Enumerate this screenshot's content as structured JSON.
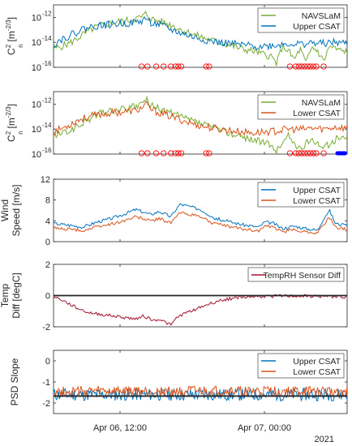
{
  "figure": {
    "year_label": "2021",
    "time_ticks": [
      "Apr 06, 12:00",
      "Apr 07, 00:00"
    ]
  },
  "colors": {
    "navslam": "#77ac30",
    "upper": "#0072bd",
    "lower": "#d95319",
    "temp": "#a2142f",
    "marker": "#ff0000",
    "blue_marker": "#0000ff",
    "axis": "#262626"
  },
  "chart_data": [
    {
      "type": "line",
      "ylabel": [
        "C",
        "n",
        "2",
        "[m",
        "-2/3",
        "]"
      ],
      "y_scale": "log",
      "ylim": [
        1e-16,
        1e-11
      ],
      "y_ticks": [
        {
          "value": 1e-12,
          "label_base": "10",
          "label_exp": "-12"
        },
        {
          "value": 1e-14,
          "label_base": "10",
          "label_exp": "-14"
        },
        {
          "value": 1e-16,
          "label_base": "10",
          "label_exp": "-16"
        }
      ],
      "legend_location": "top-right",
      "series": [
        {
          "name": "NAVSLaM",
          "color_key": "navslam",
          "points": [
            [
              0,
              3e-15
            ],
            [
              0.02,
              4e-15
            ],
            [
              0.06,
              1e-14
            ],
            [
              0.1,
              4e-14
            ],
            [
              0.14,
              1.5e-13
            ],
            [
              0.18,
              3e-13
            ],
            [
              0.22,
              4.5e-13
            ],
            [
              0.26,
              6e-13
            ],
            [
              0.28,
              8e-13
            ],
            [
              0.3,
              1e-12
            ],
            [
              0.315,
              2e-12
            ],
            [
              0.33,
              8e-13
            ],
            [
              0.36,
              5e-13
            ],
            [
              0.4,
              2.5e-13
            ],
            [
              0.44,
              9e-14
            ],
            [
              0.48,
              4e-14
            ],
            [
              0.52,
              2e-14
            ],
            [
              0.56,
              1e-14
            ],
            [
              0.6,
              6e-15
            ],
            [
              0.64,
              3e-15
            ],
            [
              0.68,
              2e-15
            ],
            [
              0.72,
              1e-15
            ],
            [
              0.74,
              8e-16
            ],
            [
              0.76,
              2e-16
            ],
            [
              0.78,
              5e-15
            ],
            [
              0.8,
              2e-15
            ],
            [
              0.82,
              4e-16
            ],
            [
              0.84,
              3e-15
            ],
            [
              0.86,
              2e-16
            ],
            [
              0.88,
              4e-15
            ],
            [
              0.9,
              2e-15
            ],
            [
              0.92,
              3e-16
            ],
            [
              0.94,
              5e-15
            ],
            [
              0.96,
              3e-15
            ],
            [
              0.98,
              2e-15
            ],
            [
              1,
              2e-15
            ]
          ]
        },
        {
          "name": "Upper CSAT",
          "color_key": "upper",
          "points": [
            [
              0,
              6e-15
            ],
            [
              0.02,
              1.5e-14
            ],
            [
              0.06,
              4e-14
            ],
            [
              0.1,
              1.2e-13
            ],
            [
              0.14,
              2e-13
            ],
            [
              0.18,
              2.5e-13
            ],
            [
              0.22,
              3e-13
            ],
            [
              0.26,
              3.5e-13
            ],
            [
              0.28,
              4e-13
            ],
            [
              0.3,
              5e-13
            ],
            [
              0.315,
              9e-13
            ],
            [
              0.33,
              4e-13
            ],
            [
              0.36,
              2.5e-13
            ],
            [
              0.4,
              1e-13
            ],
            [
              0.44,
              5e-14
            ],
            [
              0.48,
              2.5e-14
            ],
            [
              0.52,
              1.5e-14
            ],
            [
              0.56,
              1e-14
            ],
            [
              0.6,
              8e-15
            ],
            [
              0.64,
              6e-15
            ],
            [
              0.68,
              5e-15
            ],
            [
              0.72,
              5e-15
            ],
            [
              0.76,
              6e-15
            ],
            [
              0.8,
              8e-15
            ],
            [
              0.84,
              7e-15
            ],
            [
              0.88,
              9e-15
            ],
            [
              0.92,
              8e-15
            ],
            [
              0.96,
              1e-14
            ],
            [
              1,
              8e-15
            ]
          ]
        }
      ],
      "markers": {
        "style": "open-circle",
        "color_key": "marker",
        "x": [
          0.3,
          0.32,
          0.35,
          0.375,
          0.4,
          0.415,
          0.425,
          0.435,
          0.52,
          0.53,
          0.805,
          0.825,
          0.835,
          0.845,
          0.855,
          0.865,
          0.875,
          0.885,
          0.895,
          0.92
        ]
      }
    },
    {
      "type": "line",
      "ylabel": [
        "C",
        "n",
        "2",
        "[m",
        "-2/3",
        "]"
      ],
      "y_scale": "log",
      "ylim": [
        1e-16,
        1e-11
      ],
      "y_ticks": [
        {
          "value": 1e-12,
          "label_base": "10",
          "label_exp": "-12"
        },
        {
          "value": 1e-14,
          "label_base": "10",
          "label_exp": "-14"
        },
        {
          "value": 1e-16,
          "label_base": "10",
          "label_exp": "-16"
        }
      ],
      "legend_location": "right",
      "series": [
        {
          "name": "NAVSLaM",
          "color_key": "navslam",
          "points": [
            [
              0,
              3e-15
            ],
            [
              0.04,
              5e-15
            ],
            [
              0.08,
              1.5e-14
            ],
            [
              0.12,
              6e-14
            ],
            [
              0.16,
              2e-13
            ],
            [
              0.2,
              3e-13
            ],
            [
              0.24,
              4e-13
            ],
            [
              0.28,
              6e-13
            ],
            [
              0.3,
              1e-12
            ],
            [
              0.315,
              2.5e-12
            ],
            [
              0.33,
              8e-13
            ],
            [
              0.36,
              4e-13
            ],
            [
              0.4,
              2e-13
            ],
            [
              0.44,
              8e-14
            ],
            [
              0.48,
              4e-14
            ],
            [
              0.52,
              2e-14
            ],
            [
              0.56,
              1e-14
            ],
            [
              0.6,
              5e-15
            ],
            [
              0.64,
              2.5e-15
            ],
            [
              0.68,
              1.5e-15
            ],
            [
              0.72,
              8e-16
            ],
            [
              0.76,
              2e-16
            ],
            [
              0.8,
              3e-15
            ],
            [
              0.84,
              2e-16
            ],
            [
              0.88,
              2e-15
            ],
            [
              0.92,
              3e-16
            ],
            [
              0.96,
              1.5e-15
            ],
            [
              1,
              2e-15
            ]
          ]
        },
        {
          "name": "Lower CSAT",
          "color_key": "lower",
          "points": [
            [
              0,
              6e-15
            ],
            [
              0.04,
              1.5e-14
            ],
            [
              0.08,
              5e-14
            ],
            [
              0.12,
              1e-13
            ],
            [
              0.16,
              1.5e-13
            ],
            [
              0.2,
              2e-13
            ],
            [
              0.24,
              2.5e-13
            ],
            [
              0.28,
              3e-13
            ],
            [
              0.3,
              5e-13
            ],
            [
              0.315,
              1e-12
            ],
            [
              0.33,
              4e-13
            ],
            [
              0.36,
              2e-13
            ],
            [
              0.4,
              1e-13
            ],
            [
              0.44,
              5e-14
            ],
            [
              0.48,
              2.5e-14
            ],
            [
              0.52,
              1.5e-14
            ],
            [
              0.56,
              1e-14
            ],
            [
              0.6,
              8e-15
            ],
            [
              0.64,
              6e-15
            ],
            [
              0.68,
              5e-15
            ],
            [
              0.72,
              6e-15
            ],
            [
              0.76,
              7e-15
            ],
            [
              0.8,
              1e-14
            ],
            [
              0.84,
              9e-15
            ],
            [
              0.88,
              1.2e-14
            ],
            [
              0.92,
              1e-14
            ],
            [
              0.96,
              1.5e-14
            ],
            [
              1,
              1.2e-14
            ]
          ]
        }
      ],
      "markers": {
        "style": "open-circle",
        "color_key": "marker",
        "x": [
          0.3,
          0.32,
          0.35,
          0.375,
          0.4,
          0.415,
          0.425,
          0.435,
          0.52,
          0.53,
          0.805,
          0.825,
          0.835,
          0.845,
          0.855,
          0.865,
          0.875,
          0.885,
          0.895,
          0.92
        ]
      },
      "blue_markers": {
        "style": "filled",
        "color_key": "blue_marker",
        "x_range": [
          0.96,
          1.0
        ]
      }
    },
    {
      "type": "line",
      "ylabel": [
        "Wind",
        "Speed [m/s]"
      ],
      "ylim": [
        0,
        12
      ],
      "y_ticks": [
        {
          "value": 0,
          "label": "0"
        },
        {
          "value": 4,
          "label": "4"
        },
        {
          "value": 8,
          "label": "8"
        },
        {
          "value": 12,
          "label": "12"
        }
      ],
      "legend_location": "right",
      "series": [
        {
          "name": "Upper CSAT",
          "color_key": "upper",
          "points": [
            [
              0,
              3.5
            ],
            [
              0.05,
              3.2
            ],
            [
              0.1,
              2.8
            ],
            [
              0.15,
              3.8
            ],
            [
              0.2,
              4.5
            ],
            [
              0.25,
              5.5
            ],
            [
              0.28,
              6.2
            ],
            [
              0.3,
              5.8
            ],
            [
              0.33,
              5.2
            ],
            [
              0.36,
              5.8
            ],
            [
              0.4,
              4.8
            ],
            [
              0.43,
              7.2
            ],
            [
              0.46,
              6.8
            ],
            [
              0.5,
              6.2
            ],
            [
              0.55,
              4.5
            ],
            [
              0.6,
              3.8
            ],
            [
              0.65,
              3.2
            ],
            [
              0.7,
              2.8
            ],
            [
              0.72,
              3.8
            ],
            [
              0.75,
              3.5
            ],
            [
              0.78,
              2.5
            ],
            [
              0.82,
              3
            ],
            [
              0.86,
              2.5
            ],
            [
              0.9,
              2.2
            ],
            [
              0.92,
              4.5
            ],
            [
              0.94,
              6
            ],
            [
              0.96,
              3.5
            ],
            [
              1,
              3
            ]
          ]
        },
        {
          "name": "Lower CSAT",
          "color_key": "lower",
          "points": [
            [
              0,
              2.6
            ],
            [
              0.05,
              2.4
            ],
            [
              0.1,
              2.1
            ],
            [
              0.15,
              2.9
            ],
            [
              0.2,
              3.4
            ],
            [
              0.25,
              4.2
            ],
            [
              0.28,
              4.8
            ],
            [
              0.3,
              4.5
            ],
            [
              0.33,
              4
            ],
            [
              0.36,
              4.4
            ],
            [
              0.4,
              3.6
            ],
            [
              0.43,
              5.6
            ],
            [
              0.46,
              5.3
            ],
            [
              0.5,
              4.8
            ],
            [
              0.55,
              3.4
            ],
            [
              0.6,
              2.9
            ],
            [
              0.65,
              2.4
            ],
            [
              0.7,
              2.1
            ],
            [
              0.72,
              3
            ],
            [
              0.75,
              2.7
            ],
            [
              0.78,
              1.9
            ],
            [
              0.82,
              2.3
            ],
            [
              0.86,
              1.9
            ],
            [
              0.9,
              1.7
            ],
            [
              0.92,
              3.4
            ],
            [
              0.94,
              4.6
            ],
            [
              0.96,
              2.7
            ],
            [
              1,
              2.3
            ]
          ]
        }
      ]
    },
    {
      "type": "line",
      "ylabel": [
        "Temp",
        "Diff [degC]"
      ],
      "ylim": [
        -2,
        2
      ],
      "y_ticks": [
        {
          "value": -2,
          "label": "-2"
        },
        {
          "value": 0,
          "label": "0"
        },
        {
          "value": 2,
          "label": "2"
        }
      ],
      "legend_location": "top-right",
      "reference_line": {
        "y": 0,
        "color_key": "axis"
      },
      "series": [
        {
          "name": "TempRH Sensor Diff",
          "color_key": "temp",
          "points": [
            [
              0,
              -0.1
            ],
            [
              0.02,
              -0.2
            ],
            [
              0.04,
              -0.4
            ],
            [
              0.06,
              -0.6
            ],
            [
              0.08,
              -0.8
            ],
            [
              0.12,
              -1.1
            ],
            [
              0.16,
              -1.2
            ],
            [
              0.2,
              -1.3
            ],
            [
              0.24,
              -1.4
            ],
            [
              0.28,
              -1.5
            ],
            [
              0.3,
              -1.3
            ],
            [
              0.32,
              -1.4
            ],
            [
              0.34,
              -1.6
            ],
            [
              0.36,
              -1.5
            ],
            [
              0.38,
              -1.7
            ],
            [
              0.4,
              -1.9
            ],
            [
              0.42,
              -1.4
            ],
            [
              0.44,
              -1.2
            ],
            [
              0.48,
              -0.9
            ],
            [
              0.52,
              -0.6
            ],
            [
              0.56,
              -0.35
            ],
            [
              0.6,
              -0.2
            ],
            [
              0.64,
              -0.1
            ],
            [
              0.7,
              -0.05
            ],
            [
              0.8,
              -0.02
            ],
            [
              0.9,
              -0.05
            ],
            [
              1,
              -0.08
            ]
          ]
        }
      ]
    },
    {
      "type": "line",
      "ylabel": [
        "PSD Slope"
      ],
      "ylim": [
        -2.5,
        0.5
      ],
      "y_ticks": [
        {
          "value": 0,
          "label": "0"
        },
        {
          "value": -1,
          "label": "-1"
        },
        {
          "value": -2,
          "label": "-2"
        }
      ],
      "legend_location": "top-right",
      "reference_line": {
        "y": -1.67,
        "color_key": "axis"
      },
      "series": [
        {
          "name": "Upper CSAT",
          "color_key": "upper",
          "noise": {
            "center": -1.6,
            "amplitude": 0.3,
            "count": 300,
            "seed": 11
          }
        },
        {
          "name": "Lower CSAT",
          "color_key": "lower",
          "noise": {
            "center": -1.45,
            "amplitude": 0.25,
            "count": 300,
            "seed": 27
          }
        }
      ]
    }
  ]
}
